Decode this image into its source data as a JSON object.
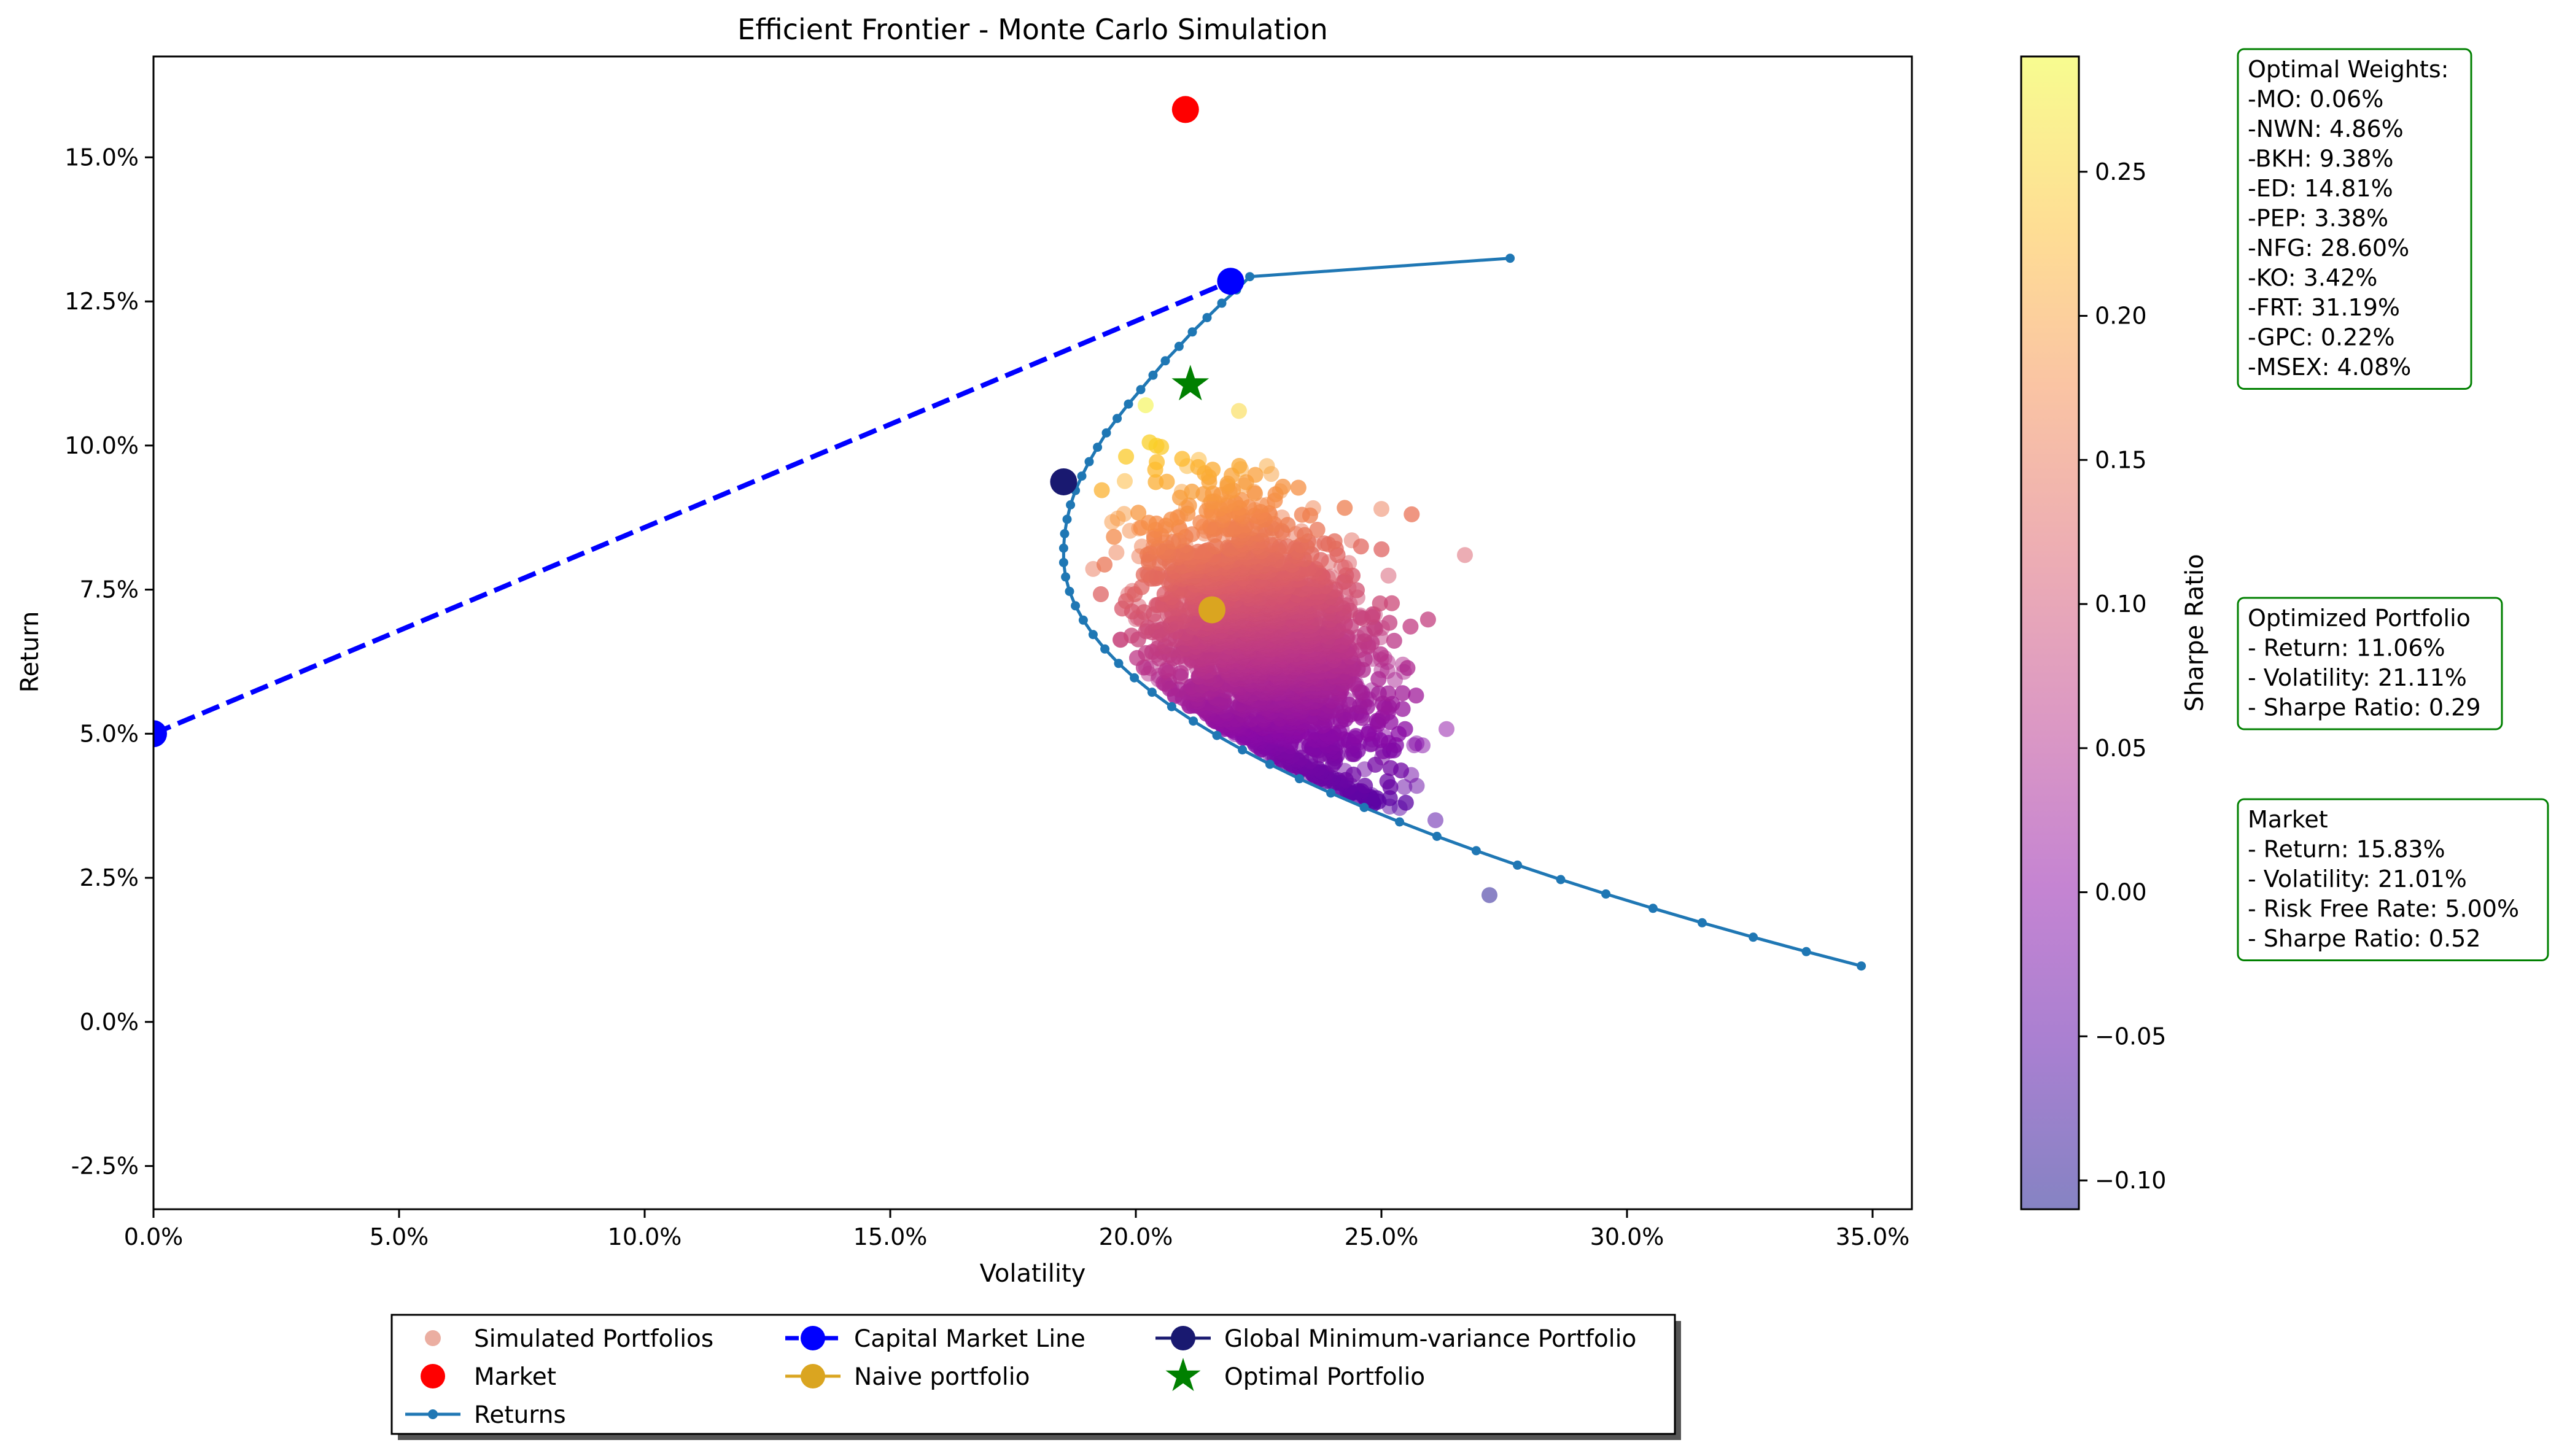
{
  "chart_data": {
    "type": "scatter",
    "title": "Efficient Frontier - Monte Carlo Simulation",
    "xlabel": "Volatility",
    "ylabel": "Return",
    "xlim": [
      0.0,
      0.358
    ],
    "ylim": [
      -0.0325,
      0.1675
    ],
    "xticks": [
      0.0,
      0.05,
      0.1,
      0.15,
      0.2,
      0.25,
      0.3,
      0.35
    ],
    "xtick_labels": [
      "0.0%",
      "5.0%",
      "10.0%",
      "15.0%",
      "20.0%",
      "25.0%",
      "30.0%",
      "35.0%"
    ],
    "yticks": [
      -0.025,
      0.0,
      0.025,
      0.05,
      0.075,
      0.1,
      0.125,
      0.15
    ],
    "ytick_labels": [
      "-2.5%",
      "0.0%",
      "2.5%",
      "5.0%",
      "7.5%",
      "10.0%",
      "12.5%",
      "15.0%"
    ],
    "grid": false,
    "colorbar": {
      "label": "Sharpe Ratio",
      "range": [
        -0.11,
        0.29
      ],
      "ticks": [
        -0.1,
        -0.05,
        0.0,
        0.05,
        0.1,
        0.15,
        0.2,
        0.25
      ],
      "tick_labels": [
        "−0.10",
        "−0.05",
        "0.00",
        "0.05",
        "0.10",
        "0.15",
        "0.20",
        "0.25"
      ]
    },
    "simulated_portfolios": {
      "name": "Simulated Portfolios",
      "count": 4000,
      "volatility_range": [
        0.19,
        0.27
      ],
      "return_range": [
        0.037,
        0.107
      ],
      "outliers": [
        [
          0.267,
          0.081
        ],
        [
          0.272,
          0.022
        ],
        [
          0.25,
          0.089
        ],
        [
          0.221,
          0.106
        ],
        [
          0.202,
          0.107
        ],
        [
          0.261,
          0.035
        ]
      ]
    },
    "returns_curve": {
      "name": "Returns",
      "x": [
        0.2762,
        0.2232,
        0.2205,
        0.2175,
        0.2145,
        0.2115,
        0.2088,
        0.206,
        0.2035,
        0.201,
        0.1985,
        0.1962,
        0.194,
        0.1922,
        0.1905,
        0.189,
        0.1877,
        0.1867,
        0.186,
        0.1855,
        0.1853,
        0.1853,
        0.1857,
        0.1865,
        0.1877,
        0.1893,
        0.1913,
        0.1937,
        0.1965,
        0.1997,
        0.2033,
        0.2073,
        0.2117,
        0.2165,
        0.2217,
        0.2273,
        0.2333,
        0.2397,
        0.2465,
        0.2537,
        0.2613,
        0.2693,
        0.2777,
        0.2865,
        0.2957,
        0.3053,
        0.3153,
        0.3257,
        0.3365,
        0.3477
      ],
      "y": [
        0.1325,
        0.1293,
        0.127,
        0.1247,
        0.1222,
        0.1197,
        0.1172,
        0.1147,
        0.1122,
        0.1097,
        0.1072,
        0.1047,
        0.1022,
        0.0997,
        0.0972,
        0.0947,
        0.0922,
        0.0897,
        0.0872,
        0.0847,
        0.0822,
        0.0797,
        0.0772,
        0.0747,
        0.0722,
        0.0697,
        0.0672,
        0.0647,
        0.0622,
        0.0597,
        0.0572,
        0.0547,
        0.0522,
        0.0497,
        0.0472,
        0.0447,
        0.0422,
        0.0397,
        0.0372,
        0.0347,
        0.0322,
        0.0297,
        0.0272,
        0.0247,
        0.0222,
        0.0197,
        0.0172,
        0.0147,
        0.0122,
        0.0097
      ]
    },
    "capital_market_line": {
      "name": "Capital Market Line",
      "x": [
        0.0,
        0.2193
      ],
      "y": [
        0.05,
        0.1285
      ]
    },
    "market": {
      "name": "Market",
      "x": 0.2101,
      "y": 0.1583
    },
    "naive_portfolio": {
      "name": "Naive portfolio",
      "x": 0.2155,
      "y": 0.0715
    },
    "global_min_variance": {
      "name": "Global Minimum-variance Portfolio",
      "x": 0.1853,
      "y": 0.0937
    },
    "optimal_portfolio": {
      "name": "Optimal Portfolio",
      "x": 0.2111,
      "y": 0.1106
    },
    "legend": {
      "placement": "lower-center (below axes)",
      "entries": [
        "Simulated Portfolios",
        "Capital Market Line",
        "Global Minimum-variance Portfolio",
        "Market",
        "Naive portfolio",
        "Optimal Portfolio",
        "Returns"
      ]
    },
    "colors": {
      "cml": "#0000ff",
      "returns": "#1f77b4",
      "market": "#ff0000",
      "naive": "#daa520",
      "gmv": "#191970",
      "optimal": "#008000",
      "simulated_legend": "#e8a090",
      "box_border": "#008000"
    }
  },
  "boxes": {
    "weights": {
      "title": "Optimal Weights:",
      "lines": [
        "-MO: 0.06%",
        "-NWN: 4.86%",
        "-BKH: 9.38%",
        "-ED: 14.81%",
        "-PEP: 3.38%",
        "-NFG: 28.60%",
        "-KO: 3.42%",
        "-FRT: 31.19%",
        "-GPC: 0.22%",
        "-MSEX: 4.08%"
      ]
    },
    "optimized": {
      "title": "Optimized Portfolio",
      "lines": [
        "- Return: 11.06%",
        "- Volatility: 21.11%",
        "- Sharpe Ratio: 0.29"
      ]
    },
    "market": {
      "title": "Market",
      "lines": [
        "- Return: 15.83%",
        "- Volatility: 21.01%",
        "- Risk Free Rate: 5.00%",
        "- Sharpe Ratio: 0.52"
      ]
    }
  }
}
